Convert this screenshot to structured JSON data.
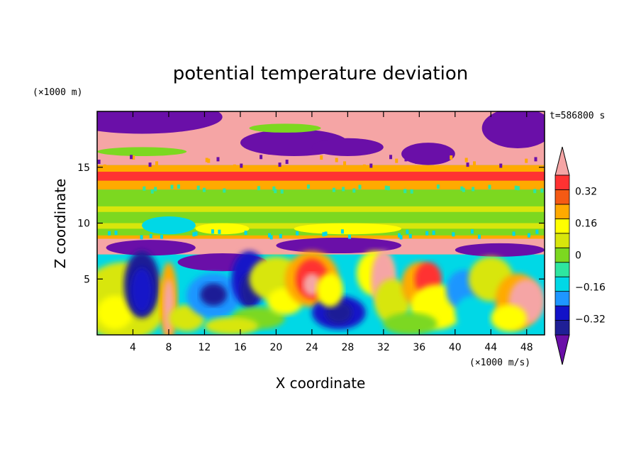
{
  "chart_data": {
    "type": "heatmap",
    "title": "potential temperature deviation",
    "xlabel": "X coordinate",
    "ylabel": "Z coordinate",
    "x_unit": "(×1000 m/s)",
    "y_unit": "(×1000 m)",
    "time_label": "t=586800 s",
    "xlim": [
      0,
      50
    ],
    "ylim": [
      0,
      20
    ],
    "x_ticks": [
      4,
      8,
      12,
      16,
      20,
      24,
      28,
      32,
      36,
      40,
      44,
      48
    ],
    "y_ticks": [
      5,
      10,
      15
    ],
    "colorbar": {
      "levels": [
        -0.4,
        -0.32,
        -0.24,
        -0.16,
        -0.08,
        0,
        0.08,
        0.16,
        0.24,
        0.32,
        0.4
      ],
      "tick_labels": [
        "0.32",
        "0.16",
        "0",
        "−0.16",
        "−0.32"
      ],
      "tick_values": [
        0.32,
        0.16,
        0,
        -0.16,
        -0.32
      ],
      "colors": [
        "#6a0fa8",
        "#1f1f96",
        "#1212c8",
        "#1e96ff",
        "#00d8e6",
        "#2ee6a0",
        "#7cd820",
        "#d8e60c",
        "#ffff00",
        "#ffaa00",
        "#f55a14",
        "#ff3232",
        "#f5a5a5"
      ],
      "extend": "both"
    }
  }
}
